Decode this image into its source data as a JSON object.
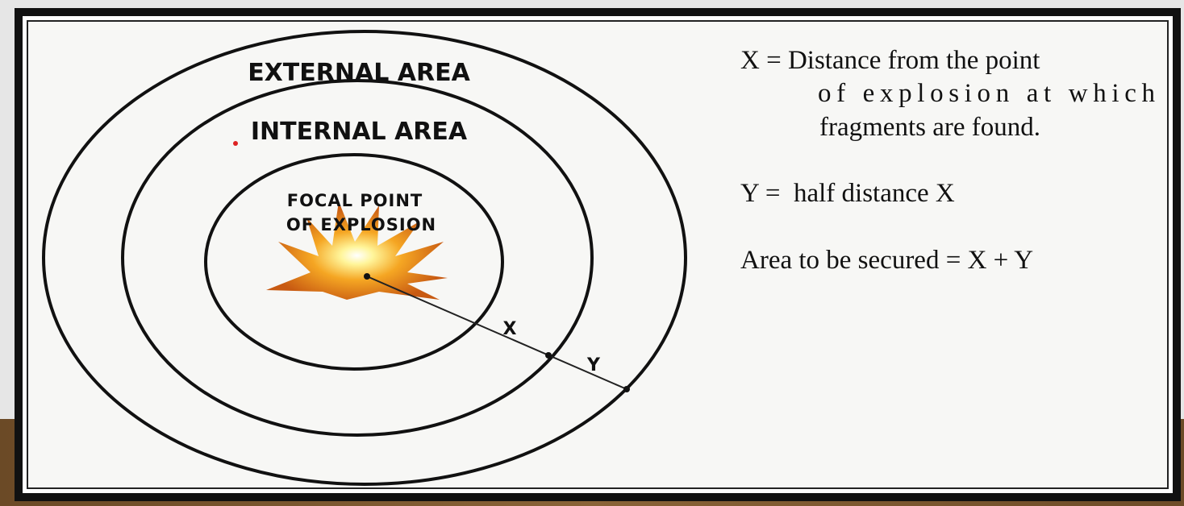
{
  "diagram": {
    "zones": {
      "external": "EXTERNAL AREA",
      "internal": "INTERNAL AREA",
      "focal_lines": [
        "FOCAL POINT",
        "OF EXPLOSION"
      ]
    },
    "dimensions": {
      "x": "X",
      "y": "Y"
    },
    "legend": {
      "x_lines": [
        "X = Distance from the point",
        "of explosion at which",
        "fragments are found."
      ],
      "y_line": "Y =  half distance X",
      "area_line": "Area to be secured = X + Y"
    }
  }
}
